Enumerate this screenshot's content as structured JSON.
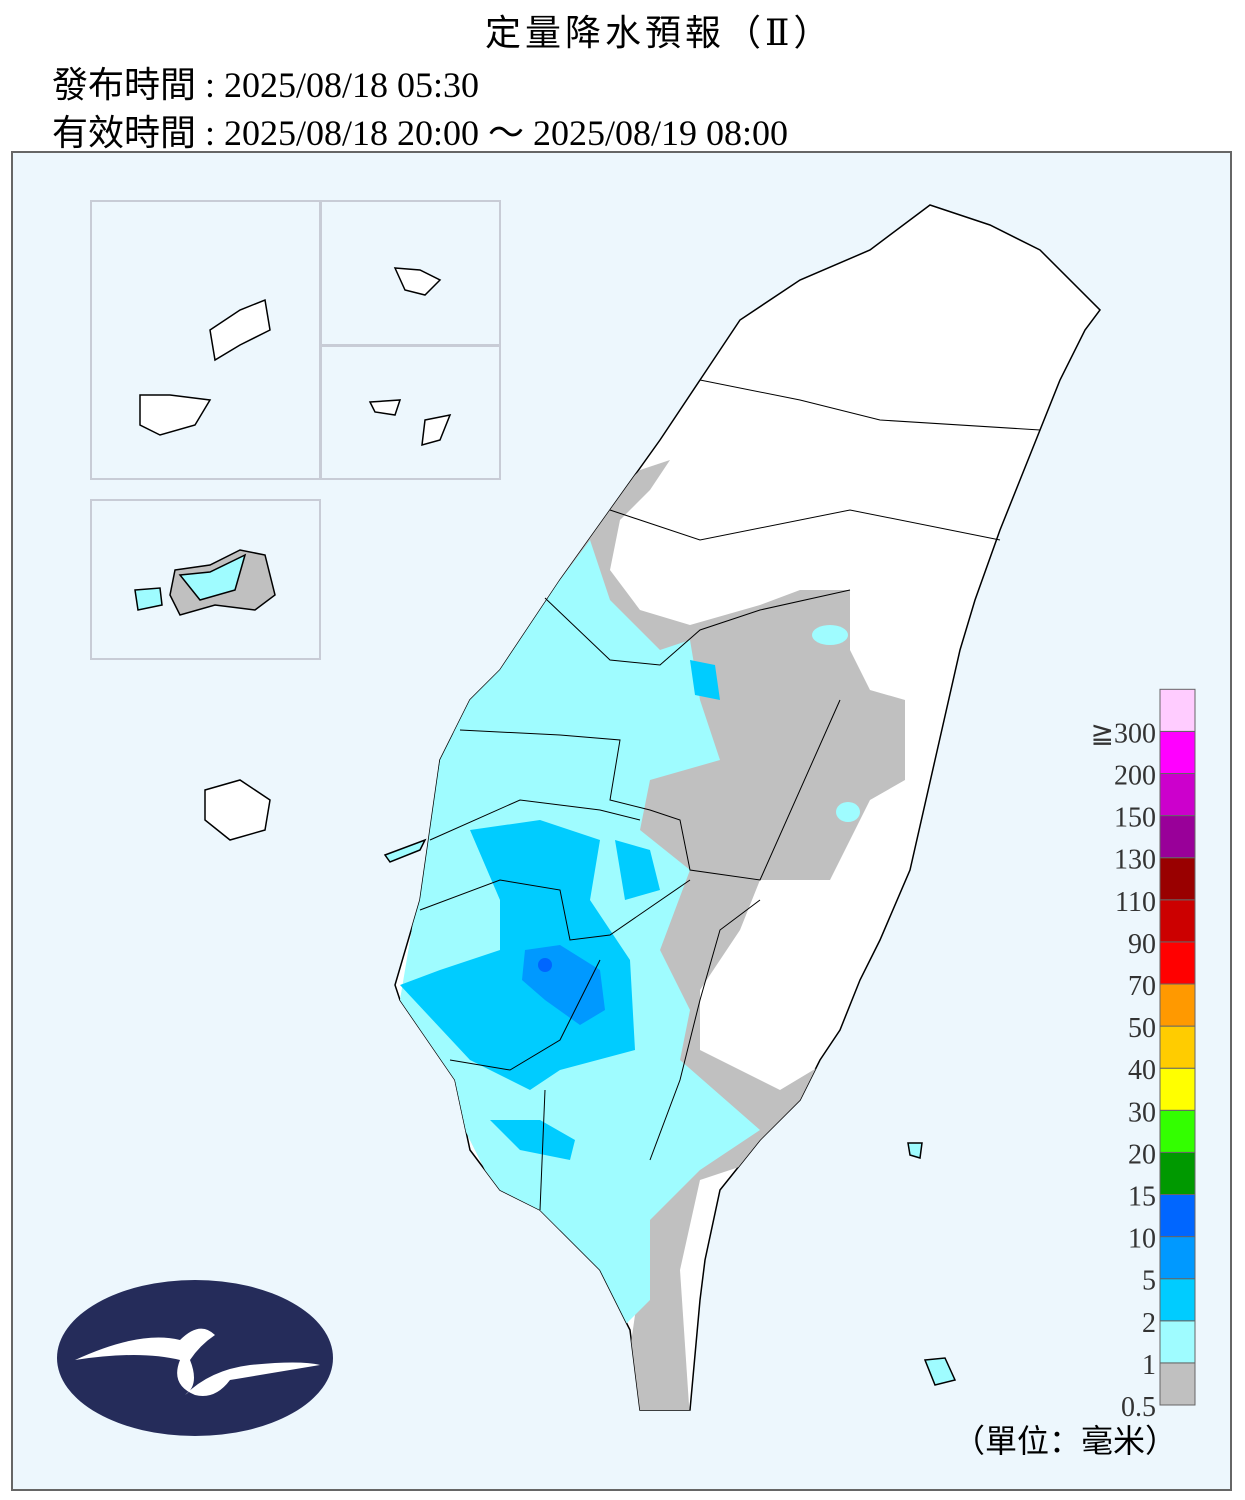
{
  "header": {
    "title": "定量降水預報（Ⅱ）",
    "issue_time": "發布時間 : 2025/08/18 05:30",
    "valid_time": "有效時間 : 2025/08/18 20:00 ～ 2025/08/19 08:00"
  },
  "legend": {
    "unit": "（單位：毫米）",
    "items": [
      {
        "label": "0.5",
        "color": "#c0c0c0"
      },
      {
        "label": "1",
        "color": "#9ffcff"
      },
      {
        "label": "2",
        "color": "#00ccff"
      },
      {
        "label": "5",
        "color": "#0099ff"
      },
      {
        "label": "10",
        "color": "#0066ff"
      },
      {
        "label": "15",
        "color": "#009900"
      },
      {
        "label": "20",
        "color": "#33ff00"
      },
      {
        "label": "30",
        "color": "#ffff00"
      },
      {
        "label": "40",
        "color": "#ffcc00"
      },
      {
        "label": "50",
        "color": "#ff9900"
      },
      {
        "label": "70",
        "color": "#ff0000"
      },
      {
        "label": "90",
        "color": "#cc0000"
      },
      {
        "label": "110",
        "color": "#990000"
      },
      {
        "label": "130",
        "color": "#990099"
      },
      {
        "label": "150",
        "color": "#cc00cc"
      },
      {
        "label": "200",
        "color": "#ff00ff"
      },
      {
        "label": "≧300",
        "color": "#ffccff"
      }
    ]
  }
}
